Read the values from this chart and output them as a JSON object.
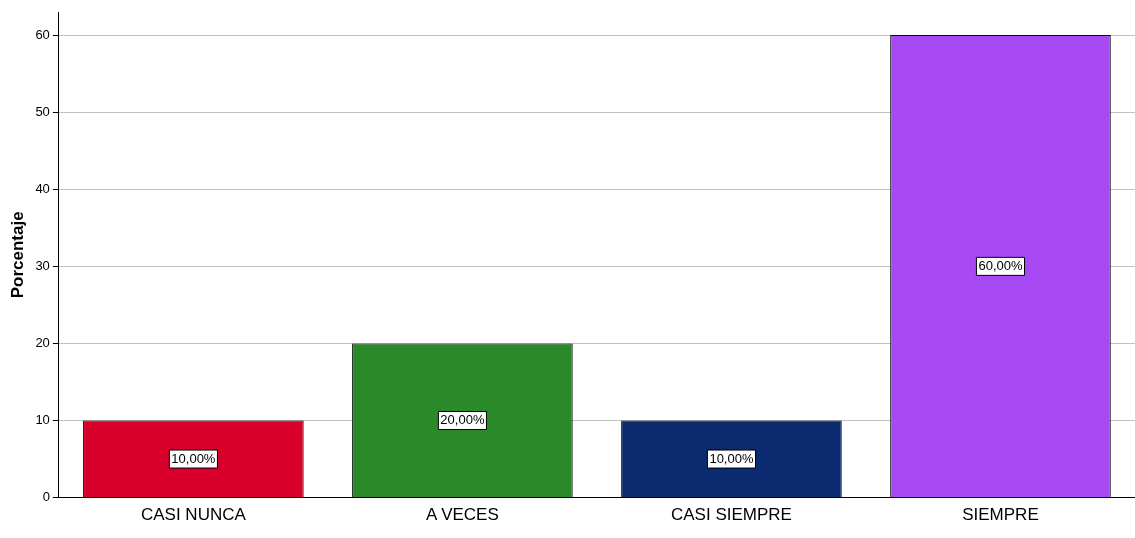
{
  "chart_data": {
    "type": "bar",
    "ylabel": "Porcentaje",
    "categories": [
      "CASI NUNCA",
      "A VECES",
      "CASI SIEMPRE",
      "SIEMPRE"
    ],
    "values": [
      10,
      20,
      10,
      60
    ],
    "colors": [
      "#d8002a",
      "#2a8a2a",
      "#0b2a70",
      "#a84af4"
    ],
    "value_labels": [
      "10,00%",
      "20,00%",
      "10,00%",
      "60,00%"
    ],
    "ylim": [
      0,
      63
    ],
    "yticks": [
      0,
      10,
      20,
      30,
      40,
      50,
      60
    ],
    "grid": "y",
    "legend": false
  }
}
